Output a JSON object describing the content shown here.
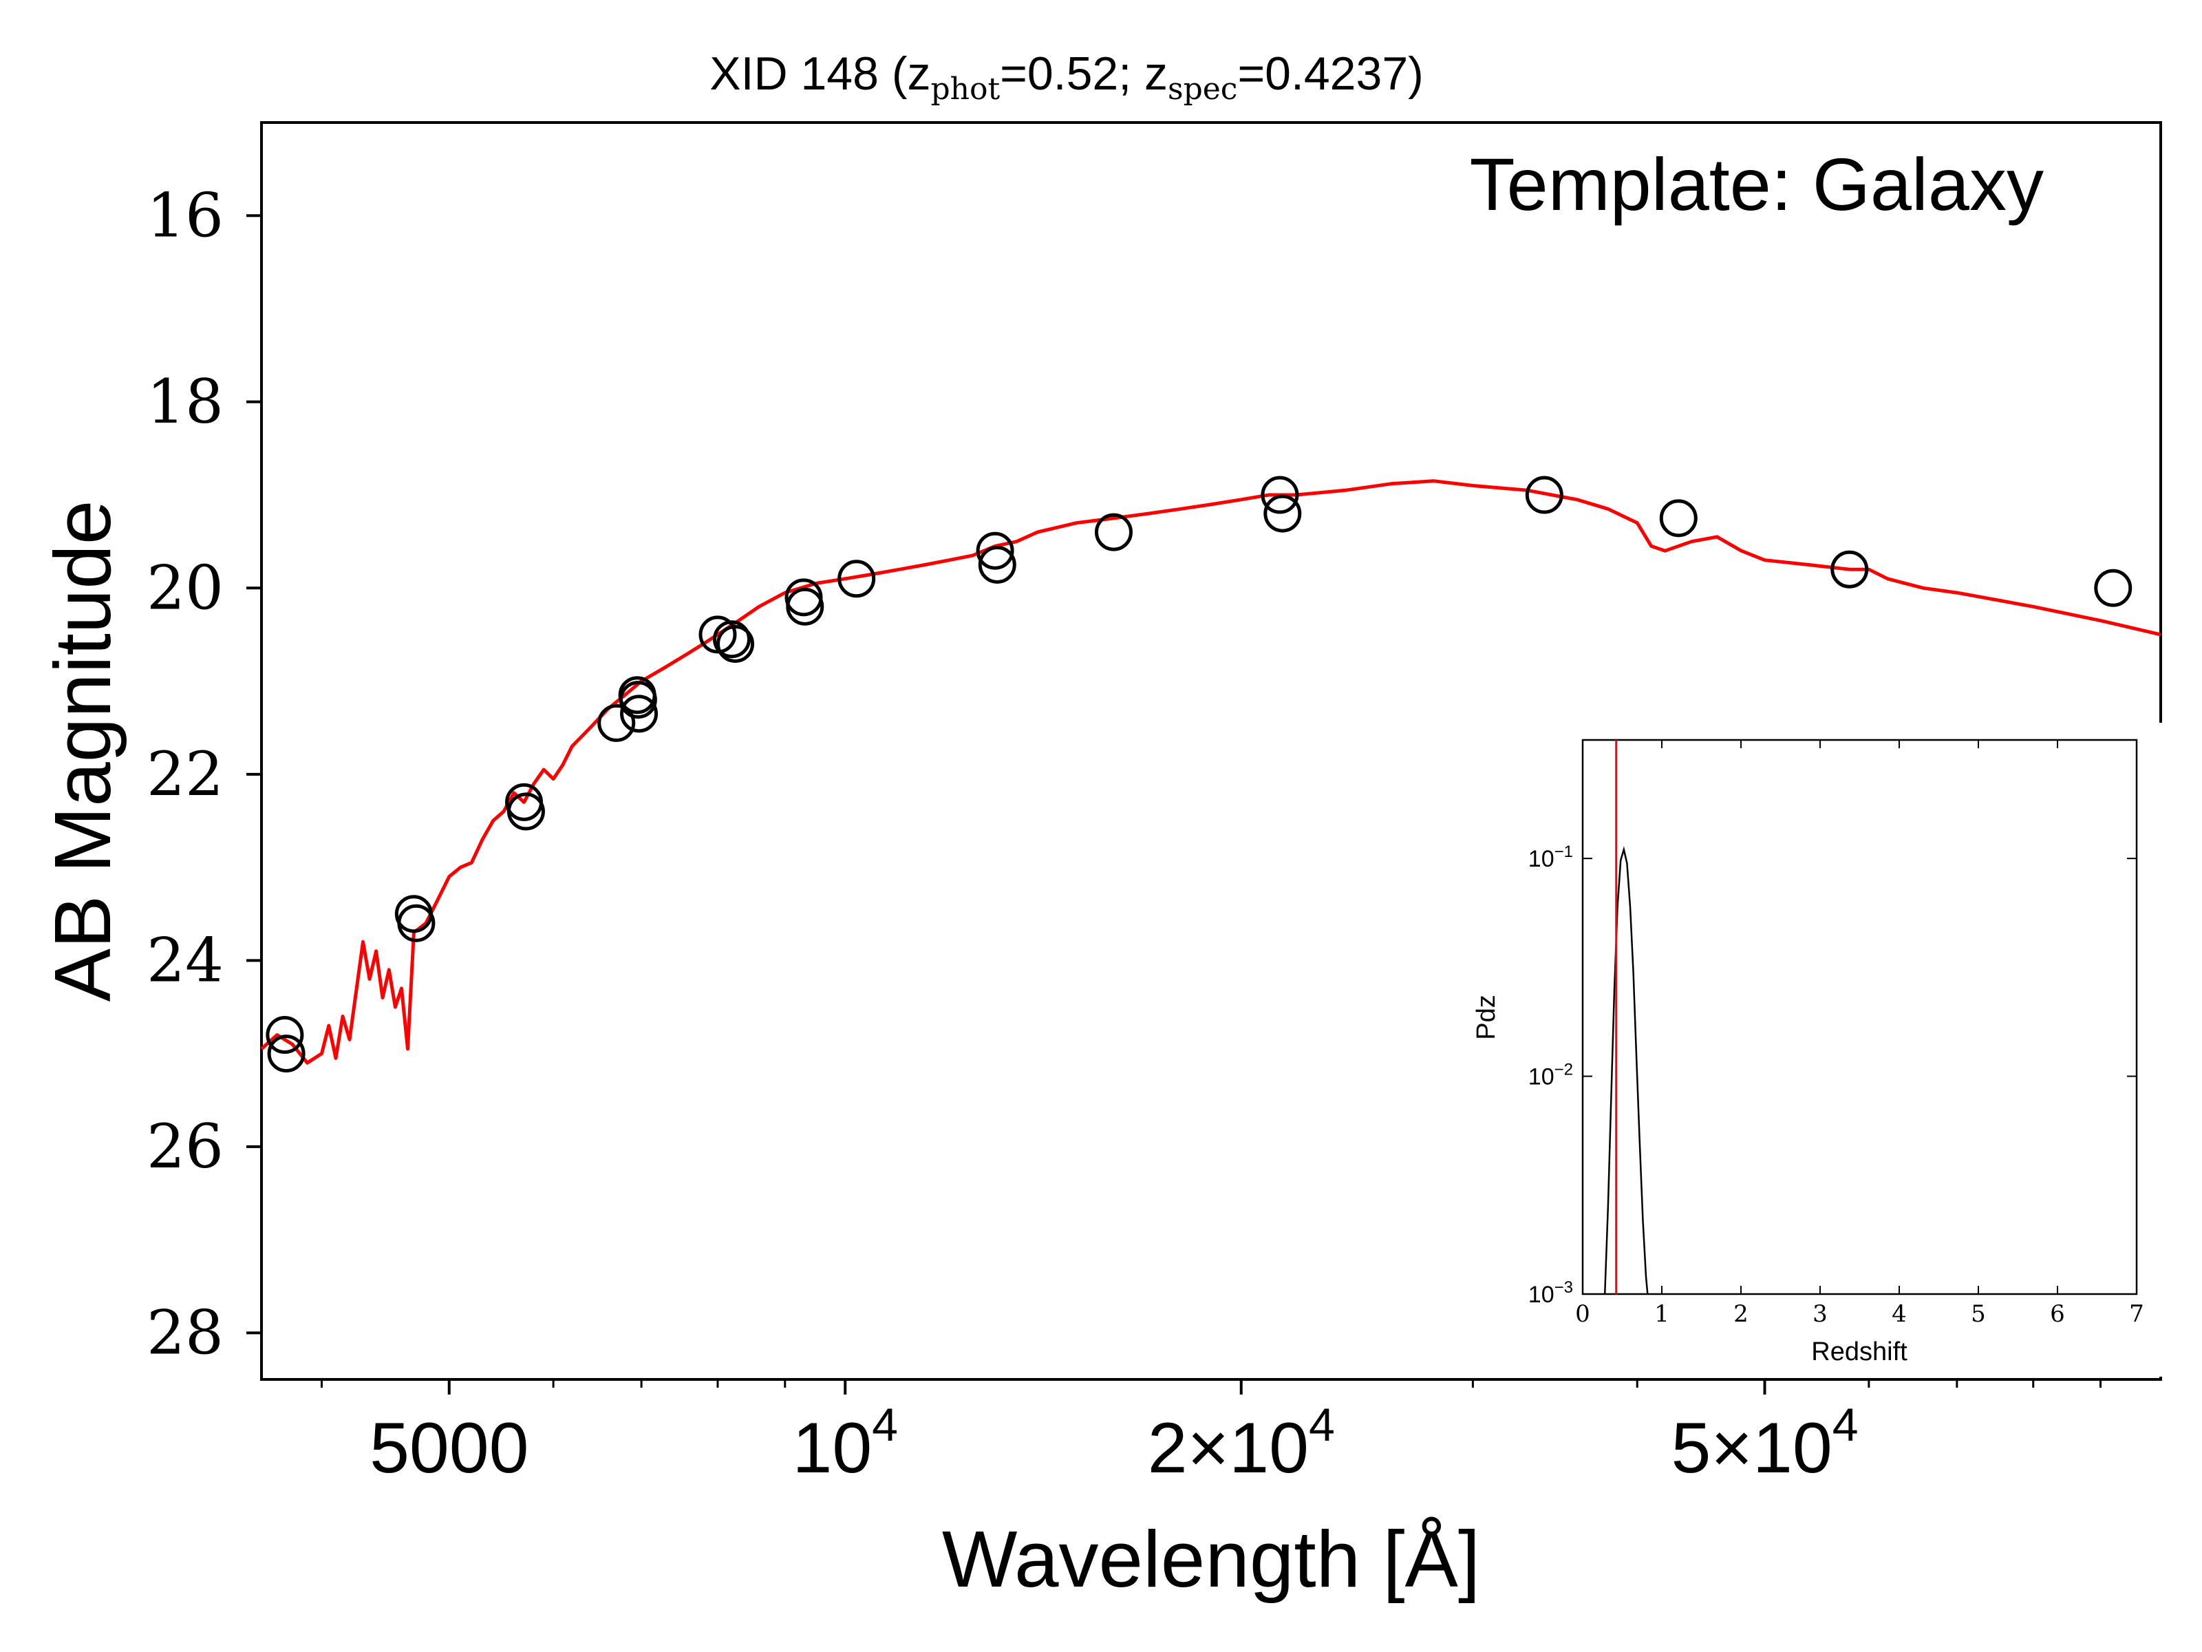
{
  "chart_data": [
    {
      "type": "line",
      "title": {
        "prefix": "XID 148 (z",
        "sub1": "phot",
        "mid1": "=0.52; z",
        "sub2": "spec",
        "end": "=0.4237)"
      },
      "annotation": "Template: Galaxy",
      "xlabel": "Wavelength [Å]",
      "ylabel": "AB Magnitude",
      "xscale": "log",
      "xlim": [
        3600,
        100000
      ],
      "ylim": [
        28.5,
        15
      ],
      "y_inverted": true,
      "xticks": [
        {
          "value": 5000,
          "label": "5000"
        },
        {
          "value": 10000,
          "label": "10",
          "sup": "4"
        },
        {
          "value": 20000,
          "label": "2×10",
          "sup": "4"
        },
        {
          "value": 50000,
          "label": "5×10",
          "sup": "4"
        }
      ],
      "yticks": [
        16,
        18,
        20,
        22,
        24,
        26,
        28
      ],
      "series": [
        {
          "kind": "template_line",
          "color": "#ff0000",
          "x": [
            3600,
            3700,
            3800,
            3900,
            4000,
            4050,
            4100,
            4150,
            4200,
            4300,
            4350,
            4400,
            4450,
            4500,
            4550,
            4600,
            4650,
            4700,
            4800,
            4900,
            5000,
            5100,
            5200,
            5300,
            5400,
            5500,
            5600,
            5700,
            5800,
            5900,
            6000,
            6100,
            6200,
            6400,
            6600,
            6800,
            7000,
            7300,
            7600,
            7800,
            8000,
            8300,
            8600,
            9000,
            9500,
            10000,
            10500,
            11000,
            11500,
            12000,
            12500,
            13000,
            13500,
            14000,
            15000,
            16000,
            17000,
            18000,
            19000,
            20000,
            21000,
            22000,
            24000,
            26000,
            28000,
            30000,
            33000,
            36000,
            38000,
            40000,
            41000,
            42000,
            44000,
            46000,
            48000,
            50000,
            54000,
            58000,
            60000,
            62000,
            66000,
            70000,
            80000,
            90000,
            100000
          ],
          "y": [
            24.95,
            24.8,
            24.9,
            25.1,
            25.0,
            24.7,
            25.05,
            24.6,
            24.85,
            23.8,
            24.2,
            23.9,
            24.4,
            24.1,
            24.5,
            24.3,
            24.95,
            23.7,
            23.6,
            23.35,
            23.1,
            23.0,
            22.95,
            22.7,
            22.5,
            22.4,
            22.2,
            22.3,
            22.1,
            21.95,
            22.05,
            21.9,
            21.7,
            21.5,
            21.3,
            21.15,
            21.0,
            20.85,
            20.7,
            20.6,
            20.5,
            20.35,
            20.2,
            20.05,
            19.95,
            19.9,
            19.85,
            19.8,
            19.75,
            19.7,
            19.65,
            19.55,
            19.5,
            19.4,
            19.3,
            19.25,
            19.2,
            19.15,
            19.1,
            19.05,
            19.0,
            19.0,
            18.95,
            18.88,
            18.85,
            18.9,
            18.95,
            19.05,
            19.15,
            19.3,
            19.55,
            19.6,
            19.5,
            19.45,
            19.6,
            19.7,
            19.75,
            19.8,
            19.8,
            19.9,
            20.0,
            20.05,
            20.2,
            20.35,
            20.5
          ]
        },
        {
          "kind": "photometry_points",
          "color": "#000000",
          "x": [
            3750,
            3760,
            4700,
            4720,
            5700,
            5720,
            6700,
            6950,
            6960,
            6970,
            8000,
            8200,
            8250,
            9300,
            9320,
            10200,
            13000,
            13050,
            16000,
            21400,
            21500,
            34000,
            43000,
            58000,
            92000
          ],
          "y": [
            24.8,
            25.0,
            23.5,
            23.6,
            22.3,
            22.4,
            21.45,
            21.15,
            21.2,
            21.35,
            20.5,
            20.55,
            20.6,
            20.1,
            20.2,
            19.9,
            19.6,
            19.75,
            19.4,
            19.0,
            19.2,
            19.0,
            19.25,
            19.8,
            20.0
          ]
        }
      ]
    },
    {
      "type": "line",
      "role": "inset",
      "xlabel": "Redshift",
      "ylabel": "Pdz",
      "xscale": "linear",
      "yscale": "log",
      "xlim": [
        0,
        7
      ],
      "ylim": [
        0.001,
        0.35
      ],
      "xticks": [
        "0",
        "1",
        "2",
        "3",
        "4",
        "5",
        "6",
        "7"
      ],
      "yticks": [
        {
          "value": 0.1,
          "base": "10",
          "exp": "−1"
        },
        {
          "value": 0.01,
          "base": "10",
          "exp": "−2"
        },
        {
          "value": 0.001,
          "base": "10",
          "exp": "−3"
        }
      ],
      "spec_z_line": {
        "value": 0.4237,
        "color": "#ff0000"
      },
      "series": [
        {
          "kind": "pdz",
          "color": "#000000",
          "x": [
            0.28,
            0.32,
            0.36,
            0.4,
            0.44,
            0.48,
            0.52,
            0.56,
            0.6,
            0.64,
            0.68,
            0.72,
            0.76,
            0.8,
            0.82
          ],
          "y": [
            0.001,
            0.0025,
            0.008,
            0.025,
            0.06,
            0.098,
            0.11,
            0.095,
            0.06,
            0.03,
            0.012,
            0.005,
            0.0022,
            0.0012,
            0.001
          ]
        }
      ]
    }
  ]
}
